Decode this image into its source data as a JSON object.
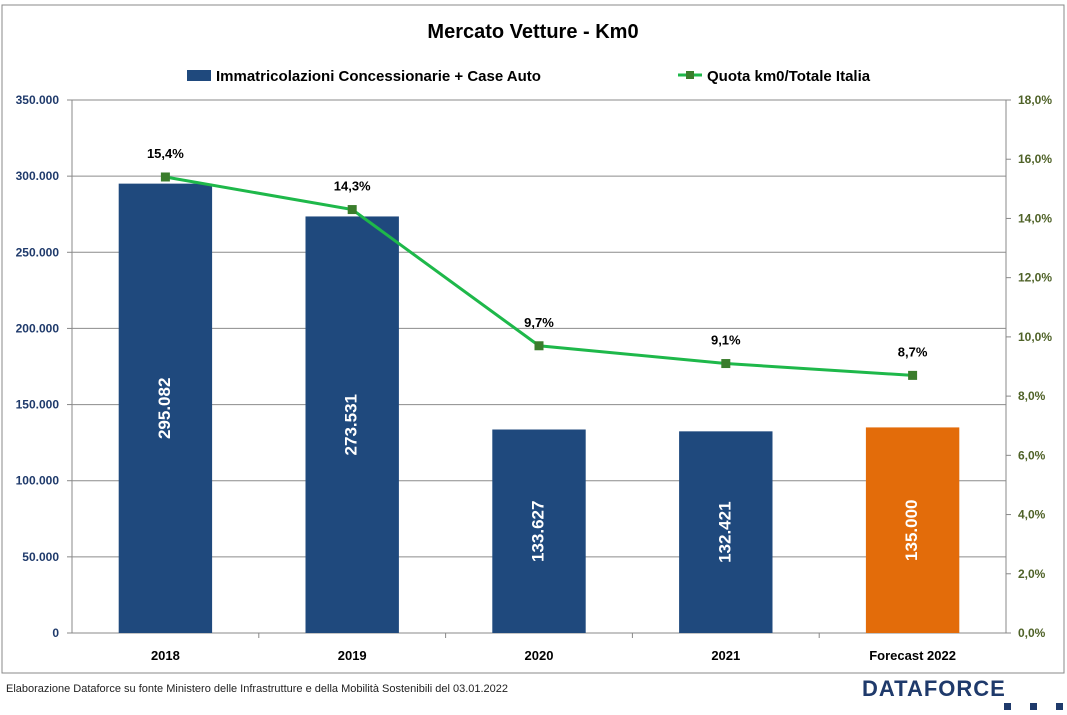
{
  "chart_data": {
    "type": "bar+line",
    "title": "Mercato Vetture - Km0",
    "categories": [
      "2018",
      "2019",
      "2020",
      "2021",
      "Forecast 2022"
    ],
    "series": [
      {
        "name": "Immatricolazioni Concessionarie + Case Auto",
        "type": "bar",
        "axis": "left",
        "values": [
          295082,
          273531,
          133627,
          132421,
          135000
        ],
        "labels": [
          "295.082",
          "273.531",
          "133.627",
          "132.421",
          "135.000"
        ],
        "colors": [
          "#1f497d",
          "#1f497d",
          "#1f497d",
          "#1f497d",
          "#e36c0a"
        ]
      },
      {
        "name": "Quota km0/Totale Italia",
        "type": "line",
        "axis": "right",
        "values": [
          15.4,
          14.3,
          9.7,
          9.1,
          8.7
        ],
        "labels": [
          "15,4%",
          "14,3%",
          "9,7%",
          "9,1%",
          "8,7%"
        ],
        "color": "#1eb84a",
        "marker_color": "#3a7d2c"
      }
    ],
    "y_left": {
      "min": 0,
      "max": 350000,
      "ticks": [
        "0",
        "50.000",
        "100.000",
        "150.000",
        "200.000",
        "250.000",
        "300.000",
        "350.000"
      ],
      "color": "#1f3a6b"
    },
    "y_right": {
      "min": 0,
      "max": 18,
      "ticks": [
        "0,0%",
        "2,0%",
        "4,0%",
        "6,0%",
        "8,0%",
        "10,0%",
        "12,0%",
        "14,0%",
        "16,0%",
        "18,0%"
      ],
      "color": "#4f6228"
    },
    "grid": true,
    "legend": "top"
  },
  "footer": {
    "source": "Elaborazione Dataforce su fonte Ministero delle Infrastrutture e della Mobilità Sostenibili del 03.01.2022",
    "logo": "DATAFORCE"
  }
}
